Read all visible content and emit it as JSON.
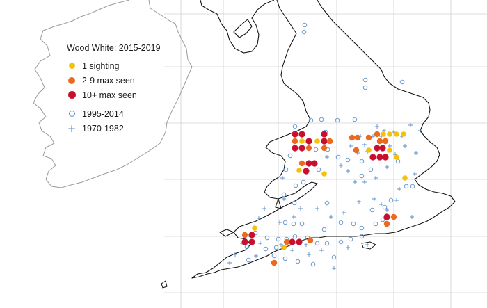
{
  "legend": {
    "title": "Wood White:  2015-2019",
    "items": [
      {
        "label": "1 sighting",
        "symbol": "dot-small",
        "color": "#f4c20d"
      },
      {
        "label": "2-9 max seen",
        "symbol": "dot-medium",
        "color": "#ec6a1d"
      },
      {
        "label": "10+ max seen",
        "symbol": "dot-large",
        "color": "#c8102e"
      },
      {
        "label": "1995-2014",
        "symbol": "ring",
        "color": "#5b8fc9"
      },
      {
        "label": "1970-1982",
        "symbol": "plus",
        "color": "#5b8fc9"
      }
    ]
  },
  "map": {
    "land_outline_color": "#000000",
    "ireland_outline_color": "#9a9a9a",
    "grid_color": "#c8c8c8"
  }
}
